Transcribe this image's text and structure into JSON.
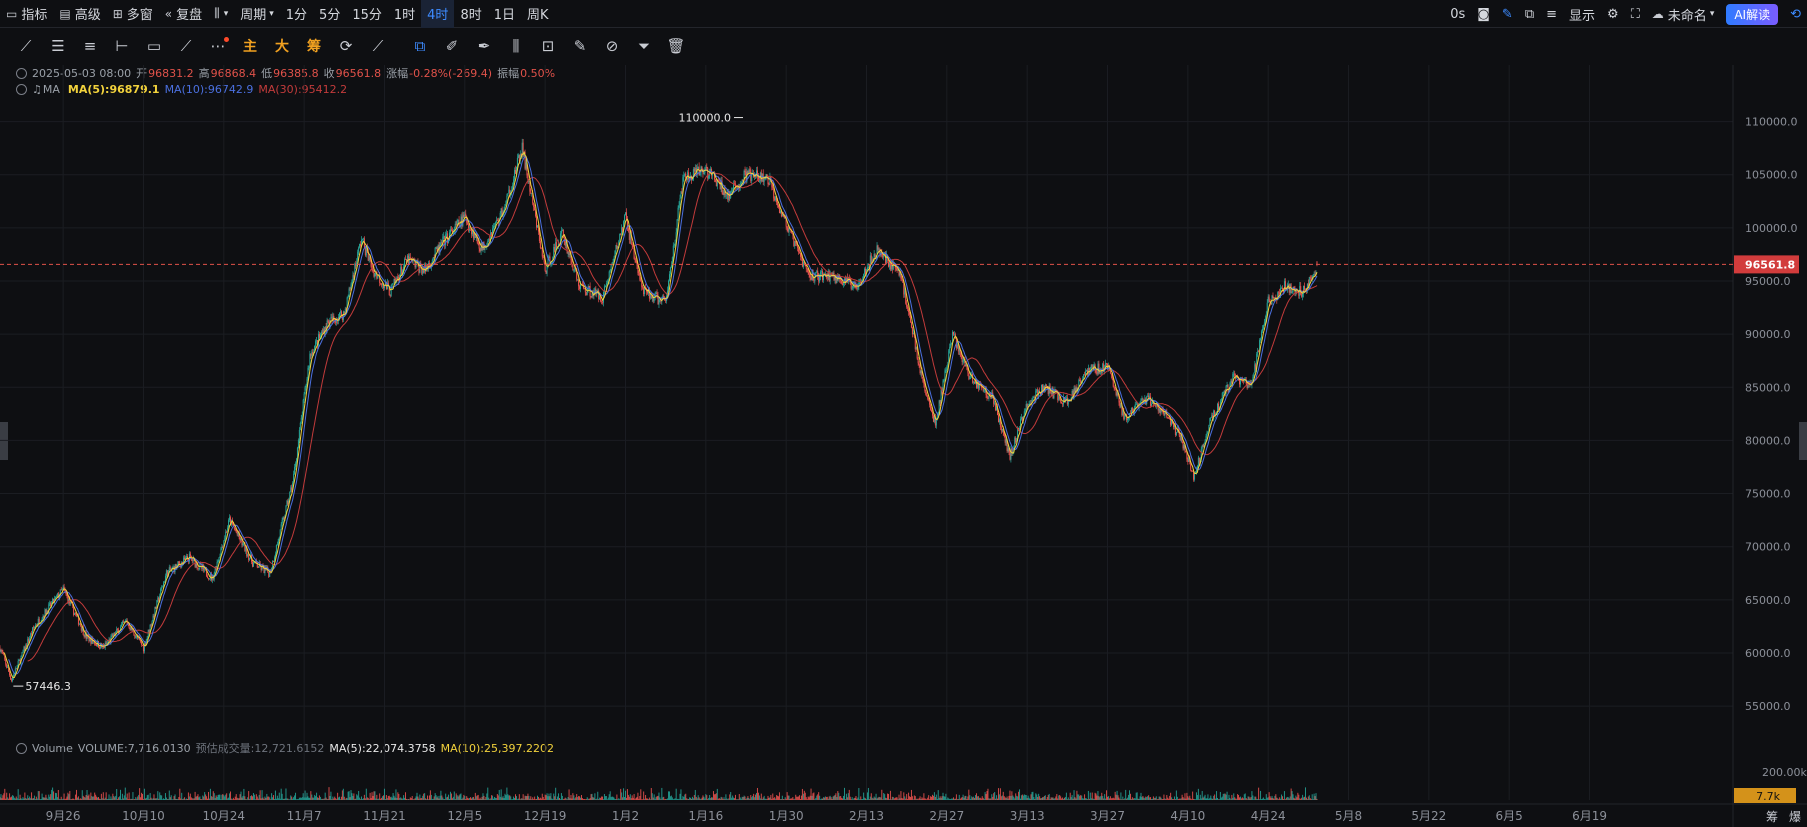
{
  "toolbar": {
    "indicators": "指标",
    "advanced": "高级",
    "multi_window": "多窗",
    "replay": "复盘",
    "period": "周期",
    "intervals": [
      "1分",
      "5分",
      "15分",
      "1时",
      "4时",
      "8时",
      "1日",
      "周K"
    ],
    "active_interval": "4时",
    "right": {
      "countdown": "0s",
      "display": "显示",
      "layout_name": "未命名",
      "ai_label": "AI解读"
    }
  },
  "drawing_tools": {
    "main": "主",
    "big": "大",
    "chips": "筹"
  },
  "info_bar": {
    "datetime": "2025-05-03 08:00",
    "open_label": "开",
    "open": "96831.2",
    "high_label": "高",
    "high": "96868.4",
    "low_label": "低",
    "low": "96385.8",
    "close_label": "收",
    "close": "96561.8",
    "change_label": "涨幅",
    "change": "-0.28%(-269.4)",
    "amplitude_label": "振幅",
    "amplitude": "0.50%"
  },
  "ma_legend": {
    "label": "MA",
    "ma5": "MA(5):96879.1",
    "ma10": "MA(10):96742.9",
    "ma30": "MA(30):95412.2"
  },
  "volume_legend": {
    "label": "Volume",
    "volume": "VOLUME:7,716.0130",
    "estimated": "预估成交量:12,721.6152",
    "ma5": "MA(5):22,074.3758",
    "ma10": "MA(10):25,397.2202"
  },
  "bottom_right": {
    "chips": "筹",
    "liquidation": "爆"
  },
  "colors": {
    "up": "#26a69a",
    "down": "#ef5350",
    "ma5": "#f2d23c",
    "ma10": "#4b70e0",
    "ma30": "#c23b3b",
    "price_line": "#e0524a",
    "background": "#0e0f12"
  },
  "chart_data": {
    "type": "candlestick",
    "y_ticks": [
      "110000.0",
      "105000.0",
      "100000.0",
      "95000.0",
      "90000.0",
      "85000.0",
      "80000.0",
      "75000.0",
      "70000.0",
      "65000.0",
      "60000.0",
      "55000.0"
    ],
    "ylim": [
      52000,
      112500
    ],
    "x_ticks": [
      "9月26",
      "10月10",
      "10月24",
      "11月7",
      "11月21",
      "12月5",
      "12月19",
      "1月2",
      "1月16",
      "1月30",
      "2月13",
      "2月27",
      "3月13",
      "3月27",
      "4月10",
      "4月24",
      "5月8",
      "5月22",
      "6月5",
      "6月19"
    ],
    "x_tick_days": [
      0,
      14,
      28,
      42,
      56,
      70,
      84,
      98,
      112,
      126,
      140,
      154,
      168,
      182,
      196,
      210,
      224,
      238,
      252,
      266
    ],
    "xlim_days": [
      -11,
      291
    ],
    "last_day": 218.5,
    "current_price": "96561.8",
    "current_price_value": 96561.8,
    "max_label": "110000.0",
    "max_value": 110000,
    "max_day": 119,
    "min_label": "57446.3",
    "min_value": 57446.3,
    "min_day": -8.5,
    "price_path_days": [
      -11,
      -9,
      -5,
      0,
      4,
      7,
      11,
      14,
      18,
      22,
      26,
      29,
      33,
      36,
      40,
      43,
      46,
      49,
      52,
      54,
      57,
      60,
      63,
      66,
      70,
      73,
      77,
      80,
      84,
      87,
      90,
      94,
      98,
      101,
      105,
      108,
      112,
      116,
      119,
      123,
      127,
      130,
      134,
      138,
      142,
      146,
      150,
      152,
      155,
      158,
      162,
      165,
      168,
      171,
      175,
      178,
      182,
      185,
      189,
      192,
      195,
      197,
      200,
      204,
      207,
      210,
      213,
      216,
      218.5
    ],
    "price_path_values": [
      60500,
      57500,
      62500,
      66000,
      61500,
      60500,
      63000,
      60500,
      67500,
      69000,
      67000,
      72500,
      68500,
      67500,
      76000,
      88000,
      91000,
      92000,
      99000,
      96000,
      94000,
      97000,
      96000,
      98500,
      101000,
      98000,
      102000,
      107500,
      96000,
      99500,
      94500,
      93500,
      101000,
      94000,
      93000,
      104500,
      105500,
      103000,
      105000,
      104500,
      99000,
      95500,
      95500,
      94500,
      98000,
      95500,
      85000,
      81500,
      90000,
      86000,
      84000,
      78500,
      83500,
      85000,
      83500,
      86500,
      87000,
      82000,
      84000,
      82500,
      80000,
      76500,
      82000,
      86000,
      85000,
      93000,
      94500,
      94000,
      96500
    ],
    "volume_axis": {
      "tick_label": "200.00k",
      "tick_value": 200000,
      "last_label": "7.7k",
      "last_value": 7716.013
    }
  }
}
